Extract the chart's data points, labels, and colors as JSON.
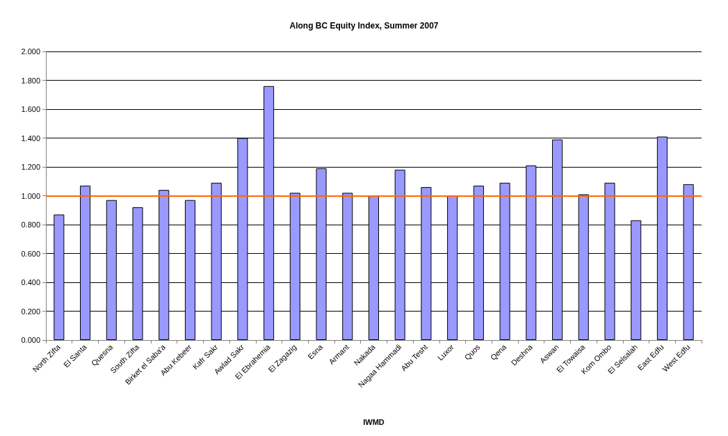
{
  "chart_data": {
    "type": "bar",
    "title": "Along BC Equity Index, Summer 2007",
    "xlabel": "IWMD",
    "categories": [
      "North Zifta",
      "El Santa",
      "Quesna",
      "South Zifta",
      "Birket el Saba'a",
      "Abu Kebeer",
      "Kafr Sakr",
      "Awlad Sakr",
      "El Ebrahemia",
      "El Zagazig",
      "Esna",
      "Armant",
      "Nakada",
      "Nagaa Hammadi",
      "Abu Tesht",
      "Luxor",
      "Quos",
      "Qena",
      "Deshna",
      "Aswan",
      "El Towaisa",
      "Kom Ombo",
      "El Selsalah",
      "East Edfu",
      "West Edfu"
    ],
    "values": [
      0.87,
      1.07,
      0.97,
      0.92,
      1.04,
      0.97,
      1.09,
      1.4,
      1.76,
      1.02,
      1.19,
      1.02,
      1.0,
      1.18,
      1.06,
      1.0,
      1.07,
      1.09,
      1.21,
      1.39,
      1.01,
      1.09,
      0.83,
      1.41,
      1.08
    ],
    "color": "#9999ff",
    "ylim": [
      0,
      2
    ],
    "yticks": [
      {
        "value": 0,
        "label": "0.000"
      },
      {
        "value": 0.2,
        "label": "0.200"
      },
      {
        "value": 0.4,
        "label": "0.400"
      },
      {
        "value": 0.6,
        "label": "0.600"
      },
      {
        "value": 0.8,
        "label": "0.800"
      },
      {
        "value": 1,
        "label": "1.000"
      },
      {
        "value": 1.2,
        "label": "1.200"
      },
      {
        "value": 1.4,
        "label": "1.400"
      },
      {
        "value": 1.6,
        "label": "1.600"
      },
      {
        "value": 1.8,
        "label": "1.800"
      },
      {
        "value": 2,
        "label": "2.000"
      }
    ],
    "grid": "y",
    "ref_lines": [
      {
        "axis": "y",
        "value": 1,
        "color": "#ff6600"
      }
    ]
  }
}
